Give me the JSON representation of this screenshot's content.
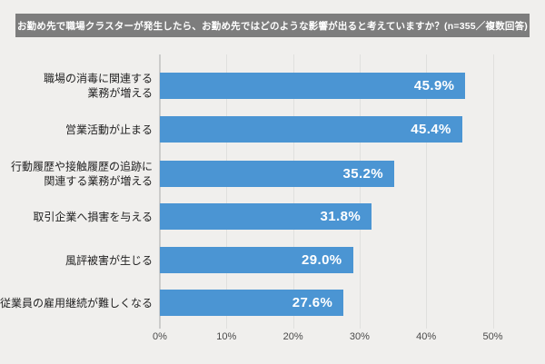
{
  "title": {
    "text": "お勤め先で職場クラスターが発生したら、お勤め先ではどのような影響が出ると考えていますか？(n=355／複数回答)"
  },
  "chart_data": {
    "type": "bar",
    "orientation": "horizontal",
    "title": "お勤め先で職場クラスターが発生したら、お勤め先ではどのような影響が出ると考えていますか？(n=355／複数回答)",
    "categories": [
      "職場の消毒に関連する\n業務が増える",
      "営業活動が止まる",
      "行動履歴や接触履歴の追跡に\n関連する業務が増える",
      "取引企業へ損害を与える",
      "風評被害が生じる",
      "従業員の雇用継続が難しくなる"
    ],
    "values": [
      45.9,
      45.4,
      35.2,
      31.8,
      29.0,
      27.6
    ],
    "value_labels": [
      "45.9%",
      "45.4%",
      "35.2%",
      "31.8%",
      "29.0%",
      "27.6%"
    ],
    "x_ticks": [
      "0%",
      "10%",
      "20%",
      "30%",
      "40%",
      "50%"
    ],
    "x_tick_values": [
      0,
      10,
      20,
      30,
      40,
      50
    ],
    "xlim": [
      0,
      50
    ],
    "grid": true,
    "legend": false,
    "bar_color": "#4b95d3",
    "value_label_color": "#ffffff",
    "background_color": "#f0efed",
    "title_background_color": "#7d7d7d",
    "title_text_color": "#ffffff"
  }
}
